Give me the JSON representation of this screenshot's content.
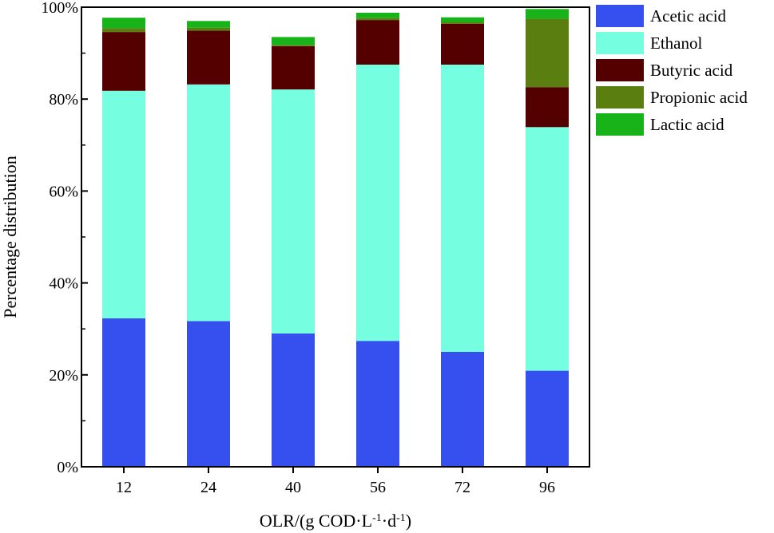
{
  "chart_data": {
    "type": "bar",
    "stacked": true,
    "categories": [
      "12",
      "24",
      "40",
      "56",
      "72",
      "96"
    ],
    "series": [
      {
        "name": "Acetic acid",
        "color": "#3550ee",
        "values": [
          32.3,
          31.7,
          29.0,
          27.4,
          25.0,
          20.9
        ]
      },
      {
        "name": "Ethanol",
        "color": "#75fee0",
        "values": [
          49.5,
          51.5,
          53.1,
          60.1,
          62.5,
          53.0
        ]
      },
      {
        "name": "Butyric acid",
        "color": "#550000",
        "values": [
          12.8,
          11.7,
          9.4,
          9.7,
          8.9,
          8.7
        ]
      },
      {
        "name": "Propionic acid",
        "color": "#5a7f10",
        "values": [
          0.8,
          0.6,
          0.3,
          0.4,
          0.3,
          14.9
        ]
      },
      {
        "name": "Lactic acid",
        "color": "#18b318",
        "values": [
          2.3,
          1.5,
          1.7,
          1.2,
          1.1,
          2.1
        ]
      }
    ],
    "xlabel_parts": {
      "base": "OLR/(g COD·L",
      "sup1": "-1",
      "mid": "·d",
      "sup2": "-1",
      "end": ")"
    },
    "ylabel": "Percentage distribution",
    "ylim": [
      0,
      100
    ],
    "yticks": [
      {
        "value": 0,
        "label": "0%"
      },
      {
        "value": 20,
        "label": "20%"
      },
      {
        "value": 40,
        "label": "40%"
      },
      {
        "value": 60,
        "label": "60%"
      },
      {
        "value": 80,
        "label": "80%"
      },
      {
        "value": 100,
        "label": "100%"
      }
    ],
    "grid": false,
    "legend_position": "top-right"
  }
}
